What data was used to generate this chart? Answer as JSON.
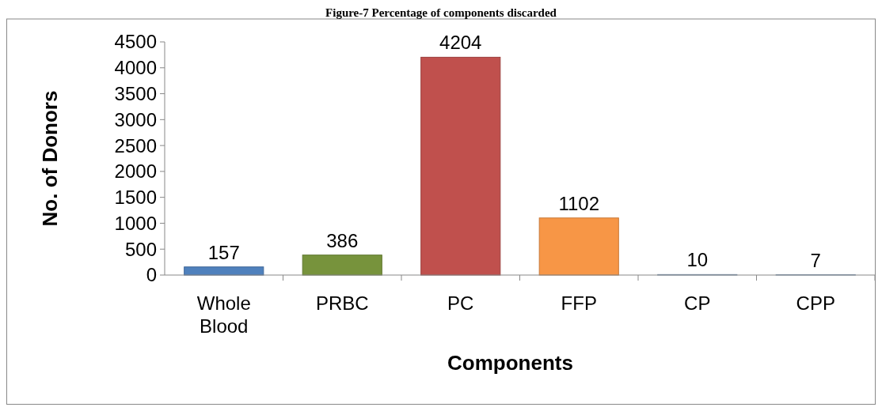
{
  "chart_data": {
    "type": "bar",
    "title": "Figure-7 Percentage of components discarded",
    "xlabel": "Components",
    "ylabel": "No. of Donors",
    "categories": [
      "Whole Blood",
      "PRBC",
      "PC",
      "FFP",
      "CP",
      "CPP"
    ],
    "values": [
      157,
      386,
      4204,
      1102,
      10,
      7
    ],
    "colors": [
      "#4f81bd",
      "#77933c",
      "#c0504d",
      "#f79646",
      "#95b3d7",
      "#95b3d7"
    ],
    "ylim": [
      0,
      4500
    ],
    "yticks": [
      0,
      500,
      1000,
      1500,
      2000,
      2500,
      3000,
      3500,
      4000,
      4500
    ],
    "data_labels": true,
    "grid": false
  }
}
